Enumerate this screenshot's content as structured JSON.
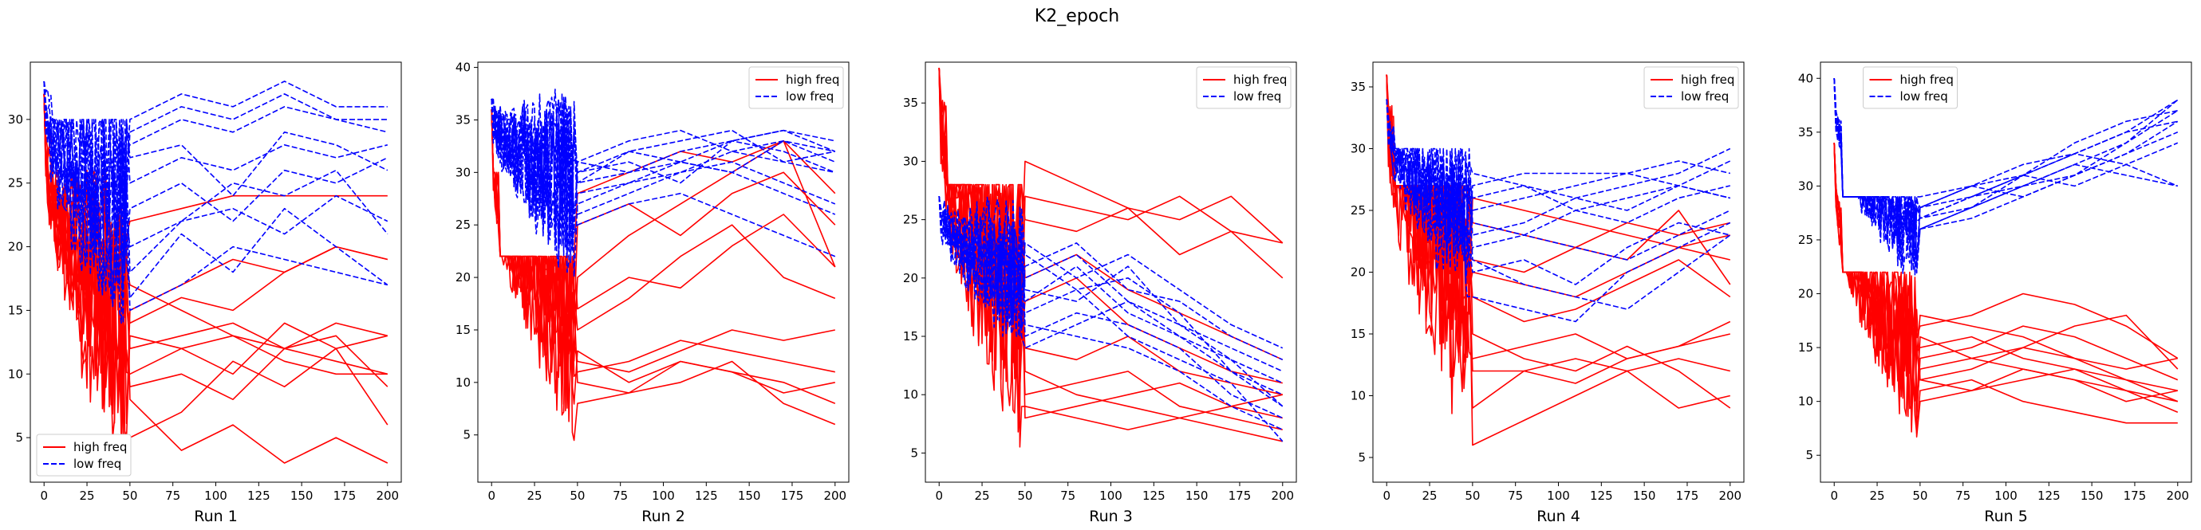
{
  "figure": {
    "title": "K2_epoch"
  },
  "colors": {
    "high": "#ff0000",
    "low": "#0000ff"
  },
  "chart_data": [
    {
      "type": "line",
      "xlabel": "Run 1",
      "xlim": [
        -8,
        208
      ],
      "ylim": [
        1.5,
        34.5
      ],
      "xticks": [
        0,
        25,
        50,
        75,
        100,
        125,
        150,
        175,
        200
      ],
      "yticks": [
        5,
        10,
        15,
        20,
        25,
        30
      ],
      "legend": {
        "position": "lower-left",
        "entries": [
          "high freq",
          "low freq"
        ]
      },
      "seed": 11,
      "series": [
        {
          "name": "high freq",
          "style": "solid",
          "start": 32,
          "early_end": 15,
          "early_min": 5,
          "early_max": 26,
          "late": [
            [
              14,
              16,
              15,
              18,
              20,
              19
            ],
            [
              12,
              13,
              14,
              12,
              11,
              10
            ],
            [
              9,
              10,
              8,
              12,
              13,
              9
            ],
            [
              17,
              15,
              13,
              12,
              14,
              13
            ],
            [
              22,
              23,
              24,
              24,
              24,
              24
            ],
            [
              8,
              4,
              6,
              3,
              5,
              3
            ],
            [
              10,
              12,
              13,
              11,
              10,
              10
            ],
            [
              15,
              17,
              19,
              18,
              20,
              19
            ],
            [
              5,
              7,
              11,
              9,
              12,
              6
            ],
            [
              13,
              12,
              10,
              14,
              12,
              13
            ]
          ]
        },
        {
          "name": "low freq",
          "style": "dashed",
          "start": 33,
          "early_end": 22,
          "early_min": 14,
          "early_max": 30,
          "late": [
            [
              28,
              30,
              29,
              31,
              30,
              29
            ],
            [
              25,
              27,
              26,
              28,
              27,
              28
            ],
            [
              20,
              22,
              23,
              21,
              24,
              22
            ],
            [
              30,
              32,
              31,
              33,
              31,
              31
            ],
            [
              15,
              17,
              20,
              19,
              18,
              17
            ],
            [
              23,
              25,
              22,
              26,
              25,
              27
            ],
            [
              29,
              31,
              30,
              32,
              30,
              30
            ],
            [
              18,
              22,
              25,
              24,
              26,
              21
            ],
            [
              27,
              28,
              24,
              29,
              28,
              26
            ],
            [
              16,
              21,
              18,
              23,
              20,
              17
            ]
          ]
        }
      ]
    },
    {
      "type": "line",
      "xlabel": "Run 2",
      "xlim": [
        -8,
        208
      ],
      "ylim": [
        0.5,
        40.5
      ],
      "xticks": [
        0,
        25,
        50,
        75,
        100,
        125,
        150,
        175,
        200
      ],
      "yticks": [
        5,
        10,
        15,
        20,
        25,
        30,
        35,
        40
      ],
      "legend": {
        "position": "upper-right",
        "entries": [
          "high freq",
          "low freq"
        ]
      },
      "seed": 23,
      "series": [
        {
          "name": "high freq",
          "style": "solid",
          "start": 36,
          "early_end": 17,
          "early_min": 2,
          "early_max": 22,
          "late": [
            [
              20,
              24,
              27,
              30,
              33,
              21
            ],
            [
              15,
              18,
              22,
              25,
              20,
              18
            ],
            [
              12,
              11,
              13,
              15,
              14,
              15
            ],
            [
              10,
              9,
              12,
              11,
              10,
              8
            ],
            [
              28,
              30,
              32,
              31,
              33,
              28
            ],
            [
              17,
              20,
              19,
              23,
              26,
              21
            ],
            [
              11,
              12,
              14,
              13,
              12,
              11
            ],
            [
              8,
              9,
              10,
              12,
              8,
              6
            ],
            [
              25,
              27,
              24,
              28,
              30,
              25
            ],
            [
              13,
              10,
              12,
              11,
              9,
              10
            ]
          ]
        },
        {
          "name": "low freq",
          "style": "dashed",
          "start": 37,
          "early_end": 30,
          "early_min": 20,
          "early_max": 39,
          "late": [
            [
              29,
              30,
              31,
              33,
              34,
              32
            ],
            [
              30,
              32,
              31,
              30,
              33,
              31
            ],
            [
              28,
              29,
              30,
              32,
              31,
              30
            ],
            [
              31,
              33,
              34,
              32,
              33,
              32
            ],
            [
              27,
              29,
              31,
              30,
              28,
              26
            ],
            [
              30,
              31,
              29,
              33,
              32,
              30
            ],
            [
              29,
              32,
              33,
              34,
              31,
              32
            ],
            [
              26,
              28,
              30,
              31,
              29,
              27
            ],
            [
              31,
              30,
              32,
              33,
              34,
              33
            ],
            [
              25,
              27,
              28,
              26,
              24,
              22
            ]
          ]
        }
      ]
    },
    {
      "type": "line",
      "xlabel": "Run 3",
      "xlim": [
        -8,
        208
      ],
      "ylim": [
        2.5,
        38.5
      ],
      "xticks": [
        0,
        25,
        50,
        75,
        100,
        125,
        150,
        175,
        200
      ],
      "yticks": [
        5,
        10,
        15,
        20,
        25,
        30,
        35
      ],
      "legend": {
        "position": "upper-right",
        "entries": [
          "high freq",
          "low freq"
        ]
      },
      "seed": 37,
      "series": [
        {
          "name": "high freq",
          "style": "solid",
          "start": 38,
          "early_end": 22,
          "early_min": 3,
          "early_max": 28,
          "late": [
            [
              30,
              28,
              26,
              25,
              27,
              23
            ],
            [
              12,
              10,
              9,
              8,
              7,
              6
            ],
            [
              25,
              24,
              26,
              22,
              24,
              20
            ],
            [
              10,
              11,
              12,
              9,
              8,
              7
            ],
            [
              18,
              20,
              16,
              14,
              12,
              11
            ],
            [
              8,
              9,
              10,
              11,
              9,
              8
            ],
            [
              27,
              26,
              25,
              27,
              24,
              23
            ],
            [
              14,
              13,
              15,
              12,
              11,
              10
            ],
            [
              20,
              22,
              19,
              17,
              15,
              13
            ],
            [
              9,
              8,
              7,
              8,
              9,
              10
            ]
          ]
        },
        {
          "name": "low freq",
          "style": "dashed",
          "start": 27,
          "early_end": 22,
          "early_min": 15,
          "early_max": 27,
          "late": [
            [
              20,
              22,
              18,
              16,
              14,
              12
            ],
            [
              18,
              21,
              17,
              15,
              13,
              11
            ],
            [
              22,
              19,
              20,
              17,
              12,
              10
            ],
            [
              15,
              17,
              16,
              14,
              10,
              8
            ],
            [
              19,
              18,
              21,
              16,
              13,
              9
            ],
            [
              21,
              23,
              19,
              18,
              15,
              13
            ],
            [
              16,
              15,
              14,
              12,
              9,
              7
            ],
            [
              23,
              20,
              22,
              19,
              16,
              14
            ],
            [
              17,
              19,
              15,
              13,
              11,
              6
            ],
            [
              14,
              16,
              18,
              15,
              12,
              9
            ]
          ]
        }
      ]
    },
    {
      "type": "line",
      "xlabel": "Run 4",
      "xlim": [
        -8,
        208
      ],
      "ylim": [
        3,
        37
      ],
      "xticks": [
        0,
        25,
        50,
        75,
        100,
        125,
        150,
        175,
        200
      ],
      "yticks": [
        5,
        10,
        15,
        20,
        25,
        30,
        35
      ],
      "legend": {
        "position": "upper-right",
        "entries": [
          "high freq",
          "low freq"
        ]
      },
      "seed": 53,
      "series": [
        {
          "name": "high freq",
          "style": "solid",
          "start": 36,
          "early_end": 24,
          "early_min": 5,
          "early_max": 27,
          "late": [
            [
              26,
              25,
              24,
              23,
              22,
              23
            ],
            [
              13,
              14,
              15,
              13,
              14,
              15
            ],
            [
              6,
              8,
              10,
              12,
              9,
              10
            ],
            [
              21,
              20,
              22,
              24,
              23,
              24
            ],
            [
              12,
              12,
              13,
              12,
              13,
              12
            ],
            [
              18,
              16,
              17,
              19,
              21,
              18
            ],
            [
              9,
              12,
              11,
              13,
              14,
              16
            ],
            [
              24,
              23,
              22,
              21,
              25,
              19
            ],
            [
              15,
              13,
              12,
              14,
              12,
              9
            ],
            [
              20,
              19,
              18,
              20,
              22,
              21
            ]
          ]
        },
        {
          "name": "low freq",
          "style": "dashed",
          "start": 34,
          "early_end": 26,
          "early_min": 18,
          "early_max": 30,
          "late": [
            [
              27,
              28,
              28,
              28,
              29,
              28
            ],
            [
              25,
              26,
              27,
              28,
              27,
              29
            ],
            [
              22,
              23,
              25,
              26,
              27,
              26
            ],
            [
              28,
              27,
              26,
              27,
              28,
              30
            ],
            [
              20,
              21,
              19,
              22,
              24,
              23
            ],
            [
              24,
              23,
              22,
              21,
              23,
              25
            ],
            [
              18,
              17,
              16,
              20,
              22,
              24
            ],
            [
              26,
              27,
              25,
              24,
              26,
              27
            ],
            [
              21,
              19,
              18,
              17,
              20,
              23
            ],
            [
              23,
              24,
              26,
              25,
              27,
              26
            ]
          ]
        }
      ]
    },
    {
      "type": "line",
      "xlabel": "Run 5",
      "xlim": [
        -8,
        208
      ],
      "ylim": [
        2.5,
        41.5
      ],
      "xticks": [
        0,
        25,
        50,
        75,
        100,
        125,
        150,
        175,
        200
      ],
      "yticks": [
        5,
        10,
        15,
        20,
        25,
        30,
        35,
        40
      ],
      "legend": {
        "position": "upper-center",
        "entries": [
          "high freq",
          "low freq"
        ]
      },
      "seed": 71,
      "series": [
        {
          "name": "high freq",
          "style": "solid",
          "start": 34,
          "early_end": 16,
          "early_min": 6,
          "early_max": 22,
          "late": [
            [
              15,
              16,
              14,
              13,
              12,
              11
            ],
            [
              12,
              13,
              15,
              14,
              12,
              10
            ],
            [
              18,
              17,
              16,
              14,
              13,
              14
            ],
            [
              10,
              11,
              12,
              13,
              11,
              9
            ],
            [
              14,
              15,
              17,
              16,
              14,
              12
            ],
            [
              16,
              14,
              13,
              12,
              11,
              10
            ],
            [
              11,
              12,
              10,
              9,
              8,
              8
            ],
            [
              13,
              14,
              15,
              17,
              18,
              13
            ],
            [
              12,
              11,
              13,
              12,
              10,
              11
            ],
            [
              17,
              18,
              20,
              19,
              17,
              14
            ]
          ]
        },
        {
          "name": "low freq",
          "style": "dashed",
          "start": 40,
          "early_end": 25,
          "early_min": 17,
          "early_max": 29,
          "late": [
            [
              27,
              29,
              31,
              34,
              36,
              37
            ],
            [
              28,
              30,
              32,
              33,
              35,
              36
            ],
            [
              26,
              28,
              30,
              32,
              34,
              38
            ],
            [
              29,
              30,
              31,
              33,
              32,
              30
            ],
            [
              27,
              28,
              30,
              31,
              33,
              35
            ],
            [
              28,
              29,
              31,
              30,
              32,
              34
            ],
            [
              26,
              27,
              29,
              31,
              33,
              36
            ],
            [
              27,
              29,
              30,
              32,
              31,
              30
            ],
            [
              28,
              30,
              29,
              31,
              34,
              37
            ],
            [
              26,
              28,
              31,
              33,
              35,
              38
            ]
          ]
        }
      ]
    }
  ]
}
